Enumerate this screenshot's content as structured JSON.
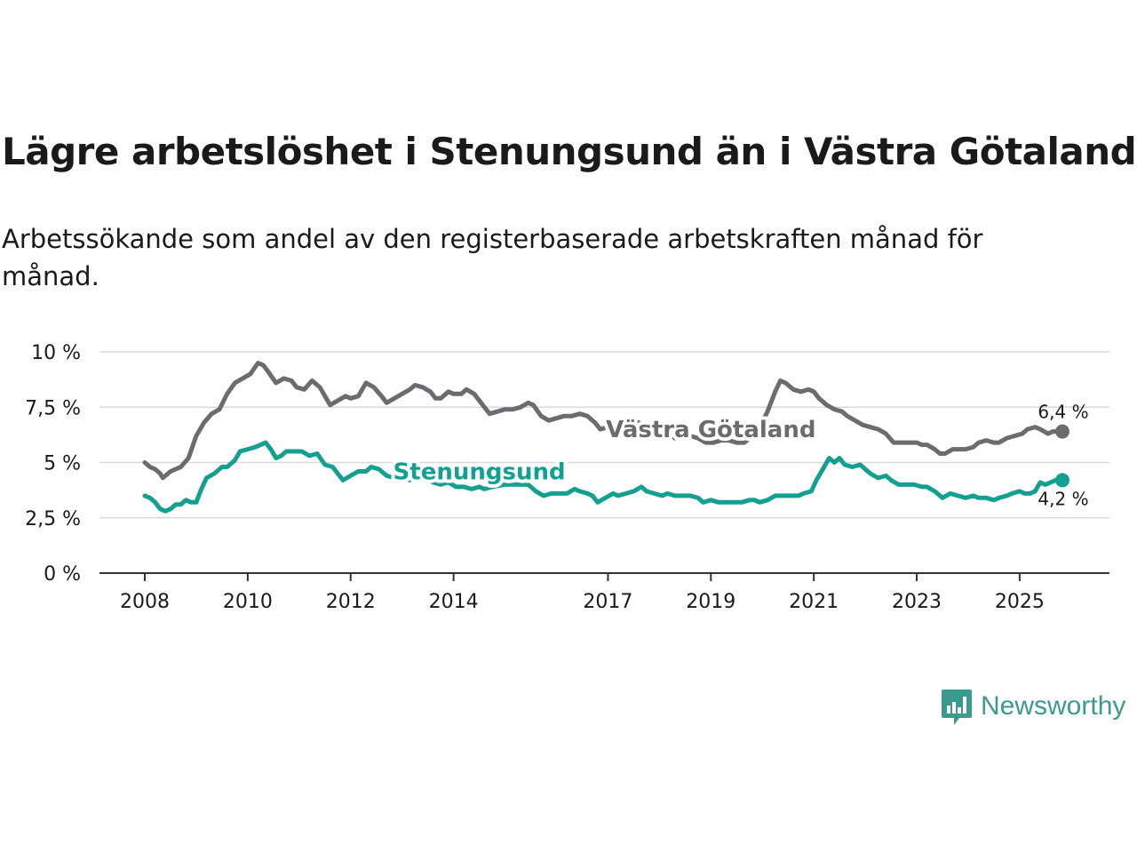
{
  "title": "Lägre arbetslöshet i Stenungsund än i Västra Götaland",
  "subtitle": "Arbetssökande som andel av den registerbaserade arbetskraften månad för månad.",
  "brand": "Newsworthy",
  "colors": {
    "regional": "#6b6b70",
    "local": "#14a090",
    "axis": "#333333",
    "grid": "#d9d9d9",
    "text": "#1a1a1a"
  },
  "chart_data": {
    "type": "line",
    "title": "Lägre arbetslöshet i Stenungsund än i Västra Götaland",
    "xlabel": "",
    "ylabel": "",
    "xlim": [
      2008.0,
      2025.83
    ],
    "ylim": [
      0,
      10
    ],
    "yticks": [
      0,
      2.5,
      5,
      7.5,
      10
    ],
    "ytick_labels": [
      "0 %",
      "2,5 %",
      "5 %",
      "7,5 %",
      "10 %"
    ],
    "xticks": [
      2008,
      2010,
      2012,
      2014,
      2017,
      2019,
      2021,
      2023,
      2025
    ],
    "xtick_labels": [
      "2008",
      "2010",
      "2012",
      "2014",
      "2017",
      "2019",
      "2021",
      "2023",
      "2025"
    ],
    "grid": true,
    "series": [
      {
        "name": "Västra Götaland",
        "color": "#6b6b70",
        "end_label": "6,4 %",
        "points": [
          [
            2008.0,
            5.0
          ],
          [
            2008.1,
            4.8
          ],
          [
            2008.2,
            4.7
          ],
          [
            2008.3,
            4.5
          ],
          [
            2008.35,
            4.3
          ],
          [
            2008.5,
            4.6
          ],
          [
            2008.7,
            4.8
          ],
          [
            2008.85,
            5.2
          ],
          [
            2009.0,
            6.2
          ],
          [
            2009.15,
            6.8
          ],
          [
            2009.3,
            7.2
          ],
          [
            2009.45,
            7.4
          ],
          [
            2009.6,
            8.1
          ],
          [
            2009.75,
            8.6
          ],
          [
            2009.9,
            8.8
          ],
          [
            2010.05,
            9.0
          ],
          [
            2010.2,
            9.5
          ],
          [
            2010.3,
            9.4
          ],
          [
            2010.4,
            9.1
          ],
          [
            2010.55,
            8.6
          ],
          [
            2010.7,
            8.8
          ],
          [
            2010.85,
            8.7
          ],
          [
            2010.95,
            8.4
          ],
          [
            2011.1,
            8.3
          ],
          [
            2011.25,
            8.7
          ],
          [
            2011.4,
            8.4
          ],
          [
            2011.5,
            8.0
          ],
          [
            2011.6,
            7.6
          ],
          [
            2011.75,
            7.8
          ],
          [
            2011.9,
            8.0
          ],
          [
            2012.0,
            7.9
          ],
          [
            2012.15,
            8.0
          ],
          [
            2012.3,
            8.6
          ],
          [
            2012.45,
            8.4
          ],
          [
            2012.6,
            8.0
          ],
          [
            2012.7,
            7.7
          ],
          [
            2012.85,
            7.9
          ],
          [
            2013.0,
            8.1
          ],
          [
            2013.15,
            8.3
          ],
          [
            2013.25,
            8.5
          ],
          [
            2013.4,
            8.4
          ],
          [
            2013.55,
            8.2
          ],
          [
            2013.65,
            7.9
          ],
          [
            2013.75,
            7.9
          ],
          [
            2013.9,
            8.2
          ],
          [
            2014.0,
            8.1
          ],
          [
            2014.15,
            8.1
          ],
          [
            2014.25,
            8.3
          ],
          [
            2014.4,
            8.1
          ],
          [
            2014.5,
            7.8
          ],
          [
            2014.6,
            7.5
          ],
          [
            2014.7,
            7.2
          ],
          [
            2014.85,
            7.3
          ],
          [
            2015.0,
            7.4
          ],
          [
            2015.15,
            7.4
          ],
          [
            2015.3,
            7.5
          ],
          [
            2015.45,
            7.7
          ],
          [
            2015.55,
            7.6
          ],
          [
            2015.7,
            7.1
          ],
          [
            2015.85,
            6.9
          ],
          [
            2016.0,
            7.0
          ],
          [
            2016.15,
            7.1
          ],
          [
            2016.3,
            7.1
          ],
          [
            2016.45,
            7.2
          ],
          [
            2016.6,
            7.1
          ],
          [
            2016.75,
            6.8
          ],
          [
            2016.85,
            6.5
          ],
          [
            2017.0,
            6.6
          ],
          [
            2017.15,
            6.7
          ],
          [
            2017.3,
            6.8
          ],
          [
            2017.45,
            6.9
          ],
          [
            2017.6,
            6.8
          ],
          [
            2017.7,
            6.6
          ],
          [
            2017.85,
            6.4
          ],
          [
            2018.0,
            6.3
          ],
          [
            2018.15,
            6.4
          ],
          [
            2018.3,
            6.1
          ],
          [
            2018.45,
            6.2
          ],
          [
            2018.6,
            6.2
          ],
          [
            2018.75,
            6.1
          ],
          [
            2018.9,
            5.9
          ],
          [
            2019.05,
            5.9
          ],
          [
            2019.2,
            6.0
          ],
          [
            2019.35,
            6.0
          ],
          [
            2019.5,
            5.9
          ],
          [
            2019.65,
            5.9
          ],
          [
            2019.8,
            6.2
          ],
          [
            2019.95,
            6.6
          ],
          [
            2020.1,
            7.3
          ],
          [
            2020.25,
            8.2
          ],
          [
            2020.35,
            8.7
          ],
          [
            2020.45,
            8.6
          ],
          [
            2020.6,
            8.3
          ],
          [
            2020.75,
            8.2
          ],
          [
            2020.9,
            8.3
          ],
          [
            2021.0,
            8.2
          ],
          [
            2021.1,
            7.9
          ],
          [
            2021.25,
            7.6
          ],
          [
            2021.4,
            7.4
          ],
          [
            2021.55,
            7.3
          ],
          [
            2021.65,
            7.1
          ],
          [
            2021.8,
            6.9
          ],
          [
            2021.95,
            6.7
          ],
          [
            2022.1,
            6.6
          ],
          [
            2022.25,
            6.5
          ],
          [
            2022.4,
            6.3
          ],
          [
            2022.55,
            5.9
          ],
          [
            2022.7,
            5.9
          ],
          [
            2022.85,
            5.9
          ],
          [
            2023.0,
            5.9
          ],
          [
            2023.1,
            5.8
          ],
          [
            2023.2,
            5.8
          ],
          [
            2023.35,
            5.6
          ],
          [
            2023.45,
            5.4
          ],
          [
            2023.55,
            5.4
          ],
          [
            2023.7,
            5.6
          ],
          [
            2023.85,
            5.6
          ],
          [
            2023.95,
            5.6
          ],
          [
            2024.1,
            5.7
          ],
          [
            2024.2,
            5.9
          ],
          [
            2024.35,
            6.0
          ],
          [
            2024.5,
            5.9
          ],
          [
            2024.6,
            5.9
          ],
          [
            2024.75,
            6.1
          ],
          [
            2024.9,
            6.2
          ],
          [
            2025.05,
            6.3
          ],
          [
            2025.15,
            6.5
          ],
          [
            2025.3,
            6.6
          ],
          [
            2025.4,
            6.5
          ],
          [
            2025.55,
            6.3
          ],
          [
            2025.65,
            6.4
          ],
          [
            2025.83,
            6.4
          ]
        ]
      },
      {
        "name": "Stenungsund",
        "color": "#14a090",
        "end_label": "4,2 %",
        "points": [
          [
            2008.0,
            3.5
          ],
          [
            2008.1,
            3.4
          ],
          [
            2008.2,
            3.2
          ],
          [
            2008.3,
            2.9
          ],
          [
            2008.4,
            2.8
          ],
          [
            2008.5,
            2.9
          ],
          [
            2008.6,
            3.1
          ],
          [
            2008.7,
            3.1
          ],
          [
            2008.8,
            3.3
          ],
          [
            2008.9,
            3.2
          ],
          [
            2009.0,
            3.2
          ],
          [
            2009.1,
            3.8
          ],
          [
            2009.2,
            4.3
          ],
          [
            2009.35,
            4.5
          ],
          [
            2009.5,
            4.8
          ],
          [
            2009.6,
            4.8
          ],
          [
            2009.75,
            5.1
          ],
          [
            2009.85,
            5.5
          ],
          [
            2010.0,
            5.6
          ],
          [
            2010.15,
            5.7
          ],
          [
            2010.25,
            5.8
          ],
          [
            2010.35,
            5.9
          ],
          [
            2010.45,
            5.6
          ],
          [
            2010.55,
            5.2
          ],
          [
            2010.65,
            5.3
          ],
          [
            2010.75,
            5.5
          ],
          [
            2010.9,
            5.5
          ],
          [
            2011.05,
            5.5
          ],
          [
            2011.2,
            5.3
          ],
          [
            2011.35,
            5.4
          ],
          [
            2011.5,
            4.9
          ],
          [
            2011.65,
            4.8
          ],
          [
            2011.75,
            4.5
          ],
          [
            2011.85,
            4.2
          ],
          [
            2012.0,
            4.4
          ],
          [
            2012.15,
            4.6
          ],
          [
            2012.3,
            4.6
          ],
          [
            2012.4,
            4.8
          ],
          [
            2012.55,
            4.7
          ],
          [
            2012.7,
            4.4
          ],
          [
            2012.85,
            4.3
          ],
          [
            2013.0,
            4.3
          ],
          [
            2013.15,
            4.2
          ],
          [
            2013.3,
            4.3
          ],
          [
            2013.45,
            4.4
          ],
          [
            2013.6,
            4.1
          ],
          [
            2013.75,
            4.0
          ],
          [
            2013.9,
            4.1
          ],
          [
            2014.05,
            3.9
          ],
          [
            2014.2,
            3.9
          ],
          [
            2014.35,
            3.8
          ],
          [
            2014.5,
            3.9
          ],
          [
            2014.6,
            3.8
          ],
          [
            2014.75,
            3.9
          ],
          [
            2015.0,
            4.0
          ],
          [
            2015.15,
            4.0
          ],
          [
            2015.3,
            4.0
          ],
          [
            2015.45,
            4.0
          ],
          [
            2015.6,
            3.7
          ],
          [
            2015.75,
            3.5
          ],
          [
            2015.9,
            3.6
          ],
          [
            2016.05,
            3.6
          ],
          [
            2016.2,
            3.6
          ],
          [
            2016.35,
            3.8
          ],
          [
            2016.45,
            3.7
          ],
          [
            2016.6,
            3.6
          ],
          [
            2016.7,
            3.5
          ],
          [
            2016.8,
            3.2
          ],
          [
            2016.95,
            3.4
          ],
          [
            2017.1,
            3.6
          ],
          [
            2017.2,
            3.5
          ],
          [
            2017.35,
            3.6
          ],
          [
            2017.5,
            3.7
          ],
          [
            2017.65,
            3.9
          ],
          [
            2017.75,
            3.7
          ],
          [
            2017.9,
            3.6
          ],
          [
            2018.05,
            3.5
          ],
          [
            2018.15,
            3.6
          ],
          [
            2018.3,
            3.5
          ],
          [
            2018.45,
            3.5
          ],
          [
            2018.6,
            3.5
          ],
          [
            2018.75,
            3.4
          ],
          [
            2018.85,
            3.2
          ],
          [
            2019.0,
            3.3
          ],
          [
            2019.15,
            3.2
          ],
          [
            2019.3,
            3.2
          ],
          [
            2019.45,
            3.2
          ],
          [
            2019.6,
            3.2
          ],
          [
            2019.75,
            3.3
          ],
          [
            2019.85,
            3.3
          ],
          [
            2019.95,
            3.2
          ],
          [
            2020.1,
            3.3
          ],
          [
            2020.25,
            3.5
          ],
          [
            2020.4,
            3.5
          ],
          [
            2020.55,
            3.5
          ],
          [
            2020.7,
            3.5
          ],
          [
            2020.8,
            3.6
          ],
          [
            2020.95,
            3.7
          ],
          [
            2021.05,
            4.2
          ],
          [
            2021.15,
            4.6
          ],
          [
            2021.3,
            5.2
          ],
          [
            2021.4,
            5.0
          ],
          [
            2021.5,
            5.2
          ],
          [
            2021.6,
            4.9
          ],
          [
            2021.75,
            4.8
          ],
          [
            2021.9,
            4.9
          ],
          [
            2022.0,
            4.7
          ],
          [
            2022.1,
            4.5
          ],
          [
            2022.25,
            4.3
          ],
          [
            2022.4,
            4.4
          ],
          [
            2022.5,
            4.2
          ],
          [
            2022.65,
            4.0
          ],
          [
            2022.8,
            4.0
          ],
          [
            2022.95,
            4.0
          ],
          [
            2023.1,
            3.9
          ],
          [
            2023.2,
            3.9
          ],
          [
            2023.35,
            3.7
          ],
          [
            2023.5,
            3.4
          ],
          [
            2023.65,
            3.6
          ],
          [
            2023.8,
            3.5
          ],
          [
            2023.95,
            3.4
          ],
          [
            2024.1,
            3.5
          ],
          [
            2024.2,
            3.4
          ],
          [
            2024.35,
            3.4
          ],
          [
            2024.5,
            3.3
          ],
          [
            2024.6,
            3.4
          ],
          [
            2024.75,
            3.5
          ],
          [
            2024.85,
            3.6
          ],
          [
            2025.0,
            3.7
          ],
          [
            2025.1,
            3.6
          ],
          [
            2025.2,
            3.6
          ],
          [
            2025.3,
            3.7
          ],
          [
            2025.4,
            4.1
          ],
          [
            2025.5,
            4.0
          ],
          [
            2025.6,
            4.1
          ],
          [
            2025.7,
            4.2
          ],
          [
            2025.83,
            4.2
          ]
        ]
      }
    ],
    "annotations": [
      {
        "text": "Västra Götaland",
        "series": "Västra Götaland",
        "x": 2019.0,
        "y": 6.5
      },
      {
        "text": "Stenungsund",
        "series": "Stenungsund",
        "x": 2014.5,
        "y": 4.6
      }
    ]
  }
}
